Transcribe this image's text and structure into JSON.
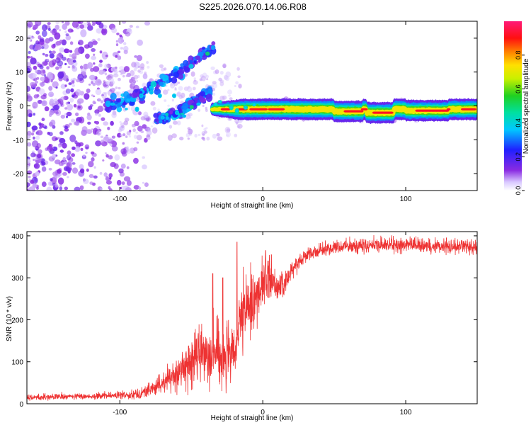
{
  "page_title": "S225.2026.070.14.06.R08",
  "colors": {
    "snr_line": "#ee3333",
    "axis": "#000000",
    "cmap": [
      "#ffffff",
      "#d9c8ff",
      "#b070ff",
      "#8a2be2",
      "#2222ee",
      "#00c8ff",
      "#00e08a",
      "#3bd23b",
      "#ffee00",
      "#ff7a00",
      "#ff0000",
      "#ff1477"
    ]
  },
  "chart_data": [
    {
      "type": "heatmap",
      "title": "S225.2026.070.14.06.R08",
      "xlabel": "Height of straight line (km)",
      "ylabel": "Frequency (Hz)",
      "xlim": [
        -165,
        150
      ],
      "ylim": [
        -25,
        25
      ],
      "x_ticks": [
        -100,
        0,
        100
      ],
      "x_tick_labels": [
        "-100",
        "0",
        "100"
      ],
      "y_ticks": [
        -20,
        -10,
        0,
        10,
        20
      ],
      "y_tick_labels": [
        "-20",
        "-10",
        "0",
        "10",
        "20"
      ],
      "colorbar": {
        "label": "Normalized spectral amplitude",
        "range": [
          0,
          1
        ],
        "ticks": [
          0.0,
          0.2,
          0.4,
          0.6,
          0.8
        ],
        "tick_labels": [
          "0.0",
          "0.2",
          "0.4",
          "0.6",
          "0.8"
        ]
      },
      "features": [
        {
          "name": "scattered noise",
          "x_range": [
            -165,
            -80
          ],
          "freq_range": [
            -25,
            25
          ],
          "amplitude": 0.15
        },
        {
          "name": "upper branch",
          "x_range": [
            -110,
            -33
          ],
          "freq_start": 0,
          "freq_end": 18,
          "amplitude": 0.25
        },
        {
          "name": "lower branch",
          "x_range": [
            -75,
            -37
          ],
          "freq_start": -4,
          "freq_end": 4,
          "amplitude": 0.25
        },
        {
          "name": "carrier",
          "x_range": [
            -35,
            150
          ],
          "freq": -1,
          "amplitude": 1.0
        }
      ]
    },
    {
      "type": "line",
      "xlabel": "Height of straight line (km)",
      "ylabel": "SNR (10 * v/v)",
      "xlim": [
        -165,
        150
      ],
      "ylim": [
        0,
        410
      ],
      "x_ticks": [
        -100,
        0,
        100
      ],
      "x_tick_labels": [
        "-100",
        "0",
        "100"
      ],
      "y_ticks": [
        0,
        100,
        200,
        300,
        400
      ],
      "y_tick_labels": [
        "0",
        "100",
        "200",
        "300",
        "400"
      ],
      "series": [
        {
          "name": "SNR",
          "color": "#ee3333",
          "x": [
            -165,
            -140,
            -120,
            -100,
            -85,
            -75,
            -65,
            -55,
            -45,
            -38,
            -30,
            -25,
            -20,
            -15,
            -10,
            -5,
            0,
            5,
            10,
            15,
            20,
            30,
            40,
            50,
            60,
            80,
            100,
            120,
            140,
            150
          ],
          "mean": [
            15,
            17,
            18,
            20,
            25,
            40,
            60,
            85,
            115,
            130,
            120,
            110,
            110,
            200,
            230,
            250,
            290,
            300,
            280,
            280,
            320,
            355,
            365,
            372,
            375,
            378,
            378,
            376,
            375,
            372
          ],
          "spread": [
            8,
            8,
            8,
            10,
            14,
            22,
            35,
            50,
            70,
            90,
            100,
            90,
            80,
            90,
            90,
            80,
            60,
            60,
            40,
            30,
            22,
            18,
            18,
            18,
            20,
            20,
            20,
            20,
            20,
            20
          ]
        }
      ]
    }
  ]
}
